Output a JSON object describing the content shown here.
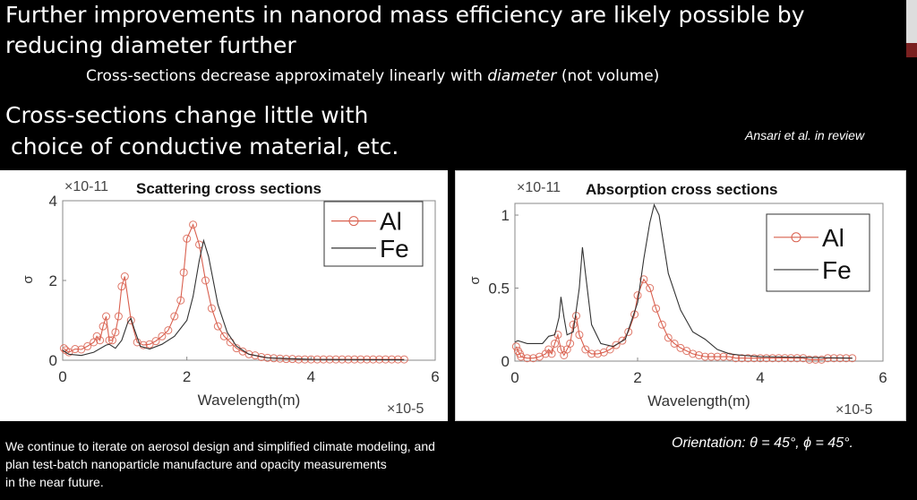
{
  "slide": {
    "heading1_line1": "Further improvements in nanorod mass efficiency are likely possible by",
    "heading1_line2": "reducing diameter further",
    "subpoint_prefix": "Cross-sections decrease approximately linearly with ",
    "subpoint_emph": "diameter",
    "subpoint_suffix": " (not volume)",
    "heading2_line1": "Cross-sections change little with",
    "heading2_line2": " choice of conductive material, etc.",
    "citation": "Ansari et al. in review",
    "footer_line1": "We continue to iterate on aerosol design and simplified climate modeling, and",
    "footer_line2": "plan test-batch nanoparticle manufacture and opacity measurements",
    "footer_line3": "in the near future.",
    "orientation": "Orientation: θ = 45°, ϕ = 45°."
  },
  "colors": {
    "al": "#d9604f",
    "fe": "#333333",
    "background": "#000000"
  },
  "chart_data": [
    {
      "type": "line",
      "title": "Scattering cross sections",
      "xlabel": "Wavelength(m)",
      "ylabel": "σ",
      "x_multiplier": "×10-5",
      "y_multiplier": "×10-11",
      "xlim": [
        0,
        6
      ],
      "ylim": [
        0,
        4
      ],
      "xticks": [
        "0",
        "2",
        "4",
        "6"
      ],
      "yticks": [
        "0",
        "2",
        "4"
      ],
      "legend": "top-right",
      "grid": false,
      "series": [
        {
          "name": "Al",
          "marker": "circle",
          "x": [
            0.02,
            0.05,
            0.1,
            0.2,
            0.3,
            0.4,
            0.5,
            0.55,
            0.6,
            0.65,
            0.7,
            0.75,
            0.8,
            0.85,
            0.9,
            0.95,
            1.0,
            1.1,
            1.2,
            1.3,
            1.4,
            1.5,
            1.6,
            1.7,
            1.8,
            1.9,
            1.95,
            2.0,
            2.1,
            2.2,
            2.3,
            2.4,
            2.5,
            2.6,
            2.7,
            2.8,
            2.9,
            3.0,
            3.1,
            3.2,
            3.3,
            3.4,
            3.5,
            3.6,
            3.7,
            3.8,
            3.9,
            4.0,
            4.1,
            4.2,
            4.3,
            4.4,
            4.5,
            4.6,
            4.7,
            4.8,
            4.9,
            5.0,
            5.1,
            5.2,
            5.3,
            5.4,
            5.5
          ],
          "y": [
            0.3,
            0.25,
            0.2,
            0.28,
            0.27,
            0.35,
            0.45,
            0.6,
            0.5,
            0.85,
            1.1,
            0.5,
            0.5,
            0.7,
            1.1,
            1.85,
            2.1,
            1.0,
            0.45,
            0.38,
            0.4,
            0.48,
            0.6,
            0.75,
            1.1,
            1.5,
            2.2,
            3.05,
            3.4,
            2.9,
            2.0,
            1.3,
            0.85,
            0.6,
            0.45,
            0.3,
            0.22,
            0.15,
            0.12,
            0.08,
            0.06,
            0.05,
            0.04,
            0.03,
            0.03,
            0.02,
            0.02,
            0.02,
            0.02,
            0.02,
            0.02,
            0.02,
            0.02,
            0.02,
            0.02,
            0.02,
            0.02,
            0.02,
            0.02,
            0.02,
            0.02,
            0.02,
            0.02
          ]
        },
        {
          "name": "Fe",
          "x": [
            0,
            0.1,
            0.3,
            0.5,
            0.7,
            0.75,
            0.85,
            0.95,
            1.05,
            1.1,
            1.15,
            1.25,
            1.4,
            1.6,
            1.8,
            2.0,
            2.1,
            2.2,
            2.27,
            2.35,
            2.5,
            2.65,
            2.8,
            3.0,
            3.3,
            4.0,
            5.5
          ],
          "y": [
            0.25,
            0.15,
            0.12,
            0.2,
            0.38,
            0.4,
            0.3,
            0.5,
            0.95,
            1.05,
            0.8,
            0.35,
            0.28,
            0.4,
            0.6,
            1.0,
            1.6,
            2.5,
            3.0,
            2.6,
            1.4,
            0.7,
            0.35,
            0.15,
            0.06,
            0.02,
            0.01
          ]
        }
      ]
    },
    {
      "type": "line",
      "title": "Absorption cross sections",
      "xlabel": "Wavelength(m)",
      "ylabel": "σ",
      "x_multiplier": "×10-5",
      "y_multiplier": "×10-11",
      "xlim": [
        0,
        6
      ],
      "ylim": [
        0,
        1.08
      ],
      "xticks": [
        "0",
        "2",
        "4",
        "6"
      ],
      "yticks": [
        "0",
        "0.5",
        "1"
      ],
      "legend": "top-right",
      "grid": false,
      "series": [
        {
          "name": "Al",
          "marker": "circle",
          "x": [
            0.02,
            0.05,
            0.08,
            0.1,
            0.2,
            0.3,
            0.4,
            0.5,
            0.55,
            0.6,
            0.65,
            0.7,
            0.75,
            0.8,
            0.85,
            0.9,
            0.95,
            1.0,
            1.05,
            1.15,
            1.25,
            1.35,
            1.45,
            1.55,
            1.65,
            1.75,
            1.85,
            1.95,
            2.0,
            2.1,
            2.2,
            2.3,
            2.4,
            2.5,
            2.6,
            2.7,
            2.8,
            2.9,
            3.0,
            3.1,
            3.2,
            3.3,
            3.4,
            3.5,
            3.6,
            3.7,
            3.8,
            3.9,
            4.0,
            4.1,
            4.2,
            4.3,
            4.4,
            4.5,
            4.6,
            4.7,
            4.8,
            4.9,
            5.0,
            5.1,
            5.2,
            5.3,
            5.4,
            5.5
          ],
          "y": [
            0.1,
            0.07,
            0.05,
            0.03,
            0.02,
            0.02,
            0.03,
            0.05,
            0.08,
            0.05,
            0.12,
            0.18,
            0.08,
            0.04,
            0.08,
            0.12,
            0.25,
            0.31,
            0.18,
            0.08,
            0.05,
            0.05,
            0.06,
            0.08,
            0.11,
            0.14,
            0.2,
            0.32,
            0.45,
            0.56,
            0.5,
            0.36,
            0.25,
            0.16,
            0.12,
            0.09,
            0.07,
            0.05,
            0.04,
            0.03,
            0.03,
            0.03,
            0.03,
            0.03,
            0.02,
            0.02,
            0.02,
            0.02,
            0.02,
            0.02,
            0.02,
            0.02,
            0.02,
            0.02,
            0.02,
            0.02,
            0.01,
            0.01,
            0.01,
            0.02,
            0.02,
            0.02,
            0.02,
            0.02
          ]
        },
        {
          "name": "Fe",
          "x": [
            0,
            0.05,
            0.2,
            0.45,
            0.55,
            0.65,
            0.72,
            0.75,
            0.8,
            0.85,
            0.95,
            1.05,
            1.1,
            1.15,
            1.25,
            1.4,
            1.6,
            1.8,
            2.0,
            2.1,
            2.2,
            2.27,
            2.35,
            2.5,
            2.7,
            2.9,
            3.1,
            3.3,
            3.5,
            3.7,
            4.0,
            5.5
          ],
          "y": [
            0.13,
            0.14,
            0.12,
            0.12,
            0.17,
            0.18,
            0.3,
            0.44,
            0.3,
            0.18,
            0.2,
            0.5,
            0.78,
            0.6,
            0.25,
            0.12,
            0.1,
            0.15,
            0.4,
            0.7,
            0.95,
            1.07,
            1.0,
            0.6,
            0.35,
            0.2,
            0.15,
            0.08,
            0.05,
            0.04,
            0.03,
            0.02
          ]
        }
      ]
    }
  ]
}
